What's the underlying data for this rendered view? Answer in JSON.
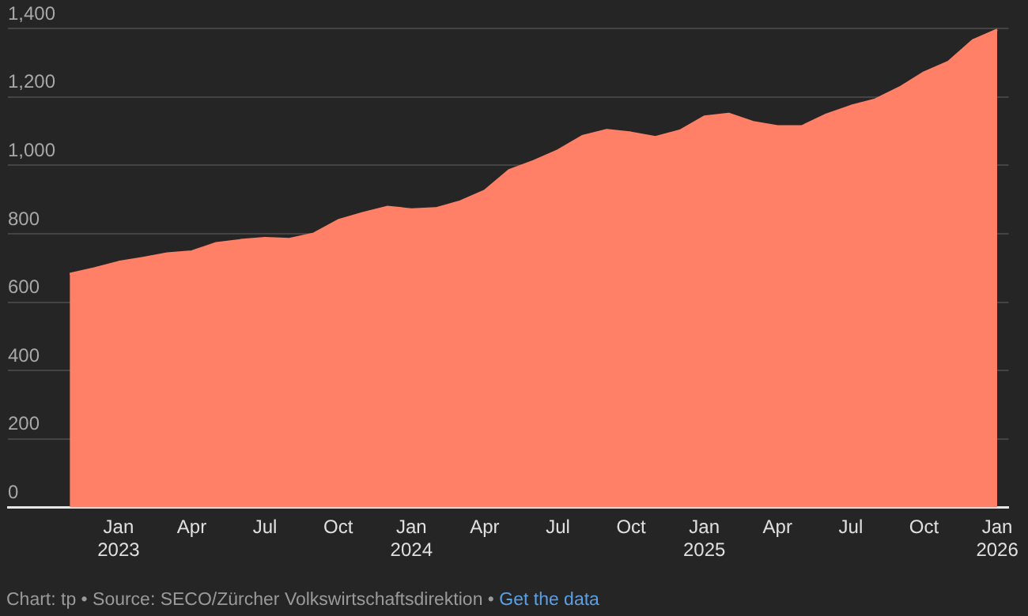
{
  "chart_data": {
    "type": "area",
    "grid": "y",
    "x": [
      "2022-11",
      "2022-12",
      "2023-01",
      "2023-02",
      "2023-03",
      "2023-04",
      "2023-05",
      "2023-06",
      "2023-07",
      "2023-08",
      "2023-09",
      "2023-10",
      "2023-11",
      "2023-12",
      "2024-01",
      "2024-02",
      "2024-03",
      "2024-04",
      "2024-05",
      "2024-06",
      "2024-07",
      "2024-08",
      "2024-09",
      "2024-10",
      "2024-11",
      "2024-12",
      "2025-01",
      "2025-02",
      "2025-03",
      "2025-04",
      "2025-05",
      "2025-06",
      "2025-07",
      "2025-08",
      "2025-09",
      "2025-10",
      "2025-11",
      "2025-12",
      "2026-01"
    ],
    "series": [
      {
        "color": "#ff8066",
        "values": [
          682,
          698,
          717,
          729,
          742,
          748,
          772,
          781,
          787,
          784,
          800,
          839,
          860,
          878,
          871,
          874,
          894,
          925,
          985,
          1012,
          1043,
          1085,
          1103,
          1095,
          1082,
          1101,
          1142,
          1150,
          1126,
          1114,
          1114,
          1148,
          1173,
          1192,
          1227,
          1271,
          1302,
          1365,
          1396
        ]
      }
    ],
    "xlim": [
      "2022-08-15",
      "2026-01-15"
    ],
    "xticks": [
      {
        "value": "2023-01",
        "label": "Jan 2023"
      },
      {
        "value": "2023-04",
        "label": "Apr"
      },
      {
        "value": "2023-07",
        "label": "Jul"
      },
      {
        "value": "2023-10",
        "label": "Oct"
      },
      {
        "value": "2024-01",
        "label": "Jan 2024"
      },
      {
        "value": "2024-04",
        "label": "Apr"
      },
      {
        "value": "2024-07",
        "label": "Jul"
      },
      {
        "value": "2024-10",
        "label": "Oct"
      },
      {
        "value": "2025-01",
        "label": "Jan 2025"
      },
      {
        "value": "2025-04",
        "label": "Apr"
      },
      {
        "value": "2025-07",
        "label": "Jul"
      },
      {
        "value": "2025-10",
        "label": "Oct"
      },
      {
        "value": "2026-01",
        "label": "Jan 2026"
      }
    ],
    "ylim": [
      0,
      1400
    ],
    "yticks": [
      0,
      200,
      400,
      600,
      800,
      {
        "value": 1000,
        "label": "1,000"
      },
      {
        "value": 1200,
        "label": "1,200"
      },
      {
        "value": 1400,
        "label": "1,400"
      }
    ],
    "annotations": [
      "Chart: tp • Source: SECO/Zürcher Volkswirtschaftsdirektion •",
      "Get the data"
    ]
  }
}
